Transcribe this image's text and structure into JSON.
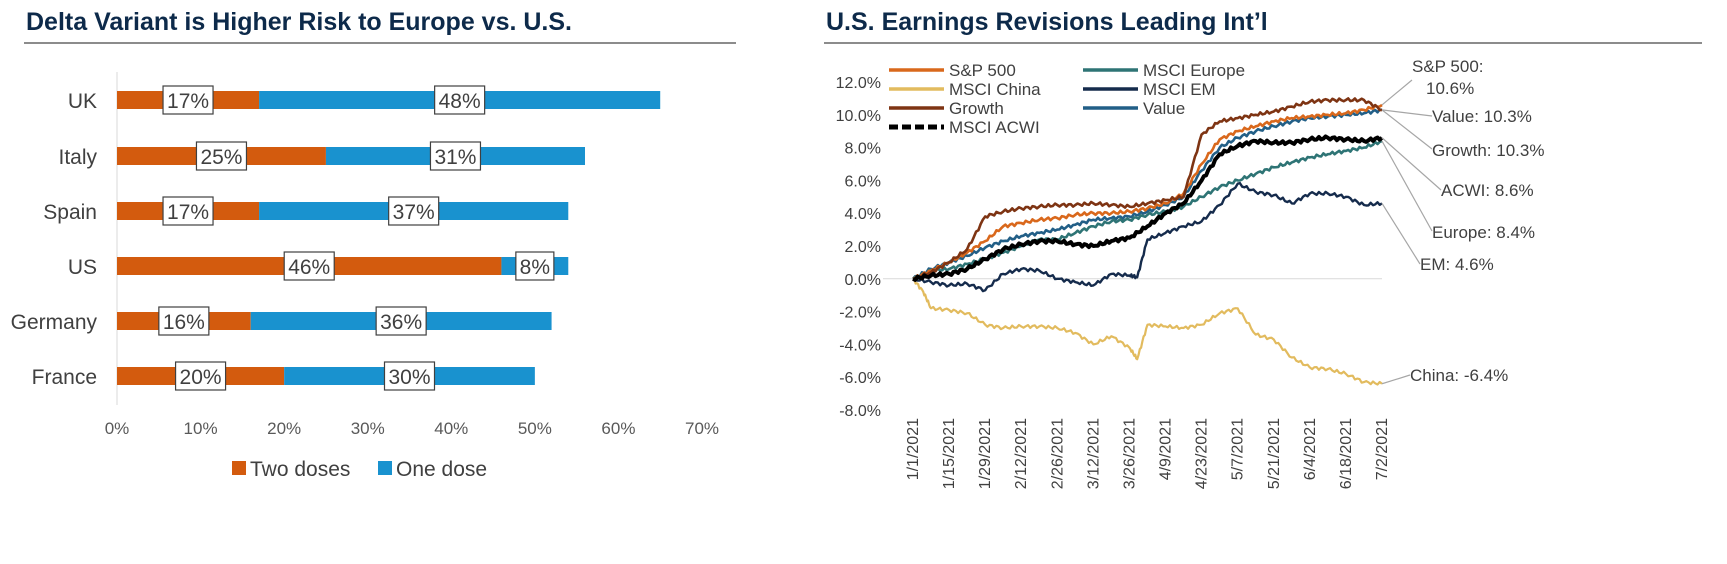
{
  "left": {
    "title": "Delta Variant is Higher Risk to Europe vs. U.S.",
    "chart_data": {
      "type": "bar",
      "orientation": "horizontal",
      "stacked": true,
      "title": "Delta Variant is Higher Risk to Europe vs. U.S.",
      "categories": [
        "UK",
        "Italy",
        "Spain",
        "US",
        "Germany",
        "France"
      ],
      "series": [
        {
          "name": "Two doses",
          "color": "#d35b0e",
          "values": [
            17,
            25,
            17,
            46,
            16,
            20
          ],
          "labels": [
            "17%",
            "25%",
            "17%",
            "46%",
            "16%",
            "20%"
          ]
        },
        {
          "name": "One dose",
          "color": "#1992cf",
          "values": [
            48,
            31,
            37,
            8,
            36,
            30
          ],
          "labels": [
            "48%",
            "31%",
            "37%",
            "8%",
            "36%",
            "30%"
          ]
        }
      ],
      "xlim": [
        0,
        70
      ],
      "x_ticks": [
        "0%",
        "10%",
        "20%",
        "30%",
        "40%",
        "50%",
        "60%",
        "70%"
      ],
      "legend": "bottom",
      "grid": false
    }
  },
  "right": {
    "title": "U.S. Earnings Revisions Leading Int’l",
    "chart_data": {
      "type": "line",
      "title": "U.S. Earnings Revisions Leading Int’l",
      "ylim": [
        -8,
        12
      ],
      "y_ticks": [
        "12.0%",
        "10.0%",
        "8.0%",
        "6.0%",
        "4.0%",
        "2.0%",
        "0.0%",
        "-2.0%",
        "-4.0%",
        "-6.0%",
        "-8.0%"
      ],
      "x_ticks": [
        "1/1/2021",
        "1/15/2021",
        "1/29/2021",
        "2/12/2021",
        "2/26/2021",
        "3/12/2021",
        "3/26/2021",
        "4/9/2021",
        "4/23/2021",
        "5/7/2021",
        "5/21/2021",
        "6/4/2021",
        "6/18/2021",
        "7/2/2021"
      ],
      "legend": "top-left",
      "grid": false,
      "series": [
        {
          "name": "S&P 500",
          "color": "#d9681c",
          "width": 2.6,
          "dash": "",
          "x": [
            "1/1/2021",
            "1/8/2021",
            "1/15/2021",
            "1/22/2021",
            "1/29/2021",
            "2/5/2021",
            "2/12/2021",
            "2/19/2021",
            "2/26/2021",
            "3/5/2021",
            "3/12/2021",
            "3/19/2021",
            "3/26/2021",
            "4/2/2021",
            "4/9/2021",
            "4/16/2021",
            "4/23/2021",
            "4/30/2021",
            "5/7/2021",
            "5/14/2021",
            "5/21/2021",
            "5/28/2021",
            "6/4/2021",
            "6/11/2021",
            "6/18/2021",
            "6/25/2021",
            "7/2/2021"
          ],
          "y": [
            0,
            0.5,
            1.0,
            1.6,
            2.3,
            3.2,
            3.4,
            3.6,
            3.7,
            3.9,
            4.0,
            4.0,
            4.1,
            4.3,
            4.6,
            5.2,
            7.0,
            8.5,
            9.0,
            9.3,
            9.6,
            9.8,
            9.9,
            10.0,
            10.1,
            10.3,
            10.6
          ]
        },
        {
          "name": "MSCI China",
          "color": "#e2bb5e",
          "width": 2.2,
          "dash": "",
          "x": [
            "1/1/2021",
            "1/5/2021",
            "1/8/2021",
            "1/15/2021",
            "1/22/2021",
            "1/29/2021",
            "2/5/2021",
            "2/12/2021",
            "2/19/2021",
            "2/26/2021",
            "3/5/2021",
            "3/12/2021",
            "3/19/2021",
            "3/26/2021",
            "3/29/2021",
            "4/2/2021",
            "4/9/2021",
            "4/16/2021",
            "4/23/2021",
            "4/30/2021",
            "5/7/2021",
            "5/14/2021",
            "5/21/2021",
            "5/28/2021",
            "6/4/2021",
            "6/11/2021",
            "6/18/2021",
            "6/25/2021",
            "7/2/2021"
          ],
          "y": [
            0,
            -0.8,
            -1.8,
            -1.9,
            -2.1,
            -2.8,
            -3.0,
            -2.9,
            -2.9,
            -3.0,
            -3.3,
            -4.0,
            -3.5,
            -4.2,
            -4.9,
            -2.8,
            -2.9,
            -3.0,
            -2.8,
            -2.1,
            -1.8,
            -3.4,
            -3.7,
            -4.8,
            -5.4,
            -5.5,
            -5.8,
            -6.3,
            -6.4
          ]
        },
        {
          "name": "Growth",
          "color": "#7e3413",
          "width": 2.6,
          "dash": "",
          "x": [
            "1/1/2021",
            "1/8/2021",
            "1/15/2021",
            "1/22/2021",
            "1/29/2021",
            "2/5/2021",
            "2/12/2021",
            "2/19/2021",
            "2/26/2021",
            "3/5/2021",
            "3/12/2021",
            "3/19/2021",
            "3/26/2021",
            "4/2/2021",
            "4/9/2021",
            "4/16/2021",
            "4/23/2021",
            "4/30/2021",
            "5/7/2021",
            "5/14/2021",
            "5/21/2021",
            "5/28/2021",
            "6/4/2021",
            "6/11/2021",
            "6/18/2021",
            "6/25/2021",
            "7/2/2021"
          ],
          "y": [
            0,
            0.4,
            1.0,
            1.8,
            3.8,
            4.1,
            4.3,
            4.4,
            4.5,
            4.5,
            4.6,
            4.5,
            4.4,
            4.6,
            4.8,
            5.0,
            8.8,
            9.6,
            9.8,
            10.0,
            10.2,
            10.5,
            10.8,
            10.9,
            10.9,
            10.9,
            10.3
          ]
        },
        {
          "name": "MSCI ACWI",
          "color": "#000000",
          "width": 4,
          "dash": "",
          "x": [
            "1/1/2021",
            "1/8/2021",
            "1/15/2021",
            "1/22/2021",
            "1/29/2021",
            "2/5/2021",
            "2/12/2021",
            "2/19/2021",
            "2/26/2021",
            "3/5/2021",
            "3/12/2021",
            "3/19/2021",
            "3/26/2021",
            "4/2/2021",
            "4/9/2021",
            "4/16/2021",
            "4/23/2021",
            "4/30/2021",
            "5/7/2021",
            "5/14/2021",
            "5/21/2021",
            "5/28/2021",
            "6/4/2021",
            "6/11/2021",
            "6/18/2021",
            "6/25/2021",
            "7/2/2021"
          ],
          "y": [
            0,
            0.2,
            0.3,
            0.6,
            1.2,
            1.8,
            2.1,
            2.3,
            2.3,
            2.1,
            2.0,
            2.3,
            2.5,
            3.2,
            4.0,
            4.6,
            6.0,
            7.6,
            8.1,
            8.4,
            8.3,
            8.3,
            8.5,
            8.6,
            8.5,
            8.4,
            8.6
          ]
        },
        {
          "name": "MSCI Europe",
          "color": "#2e7475",
          "width": 2.6,
          "dash": "",
          "x": [
            "1/1/2021",
            "1/8/2021",
            "1/15/2021",
            "1/22/2021",
            "1/29/2021",
            "2/5/2021",
            "2/12/2021",
            "2/19/2021",
            "2/26/2021",
            "3/5/2021",
            "3/12/2021",
            "3/19/2021",
            "3/26/2021",
            "4/2/2021",
            "4/9/2021",
            "4/16/2021",
            "4/23/2021",
            "4/30/2021",
            "5/7/2021",
            "5/14/2021",
            "5/21/2021",
            "5/28/2021",
            "6/4/2021",
            "6/11/2021",
            "6/18/2021",
            "6/25/2021",
            "7/2/2021"
          ],
          "y": [
            0,
            0.5,
            0.6,
            0.9,
            1.2,
            1.6,
            2.0,
            2.4,
            2.4,
            2.8,
            3.2,
            3.5,
            3.6,
            3.9,
            4.1,
            4.4,
            5.0,
            5.6,
            6.0,
            6.4,
            6.8,
            7.1,
            7.4,
            7.6,
            7.8,
            8.0,
            8.4
          ]
        },
        {
          "name": "MSCI EM",
          "color": "#152b4c",
          "width": 2.4,
          "dash": "",
          "x": [
            "1/1/2021",
            "1/8/2021",
            "1/15/2021",
            "1/22/2021",
            "1/29/2021",
            "2/5/2021",
            "2/12/2021",
            "2/19/2021",
            "2/26/2021",
            "3/5/2021",
            "3/12/2021",
            "3/19/2021",
            "3/26/2021",
            "3/29/2021",
            "4/2/2021",
            "4/9/2021",
            "4/16/2021",
            "4/23/2021",
            "4/30/2021",
            "5/7/2021",
            "5/14/2021",
            "5/21/2021",
            "5/28/2021",
            "6/4/2021",
            "6/11/2021",
            "6/18/2021",
            "6/25/2021",
            "7/2/2021"
          ],
          "y": [
            0,
            -0.2,
            -0.4,
            -0.3,
            -0.7,
            0.3,
            0.6,
            0.5,
            0.0,
            -0.2,
            -0.4,
            0.3,
            0.2,
            0.1,
            2.4,
            2.8,
            3.2,
            3.5,
            4.5,
            5.8,
            5.3,
            5.1,
            4.6,
            5.2,
            5.2,
            5.0,
            4.5,
            4.6
          ]
        },
        {
          "name": "Value",
          "color": "#225f87",
          "width": 2.6,
          "dash": "",
          "x": [
            "1/1/2021",
            "1/8/2021",
            "1/15/2021",
            "1/22/2021",
            "1/29/2021",
            "2/5/2021",
            "2/12/2021",
            "2/19/2021",
            "2/26/2021",
            "3/5/2021",
            "3/12/2021",
            "3/19/2021",
            "3/26/2021",
            "4/2/2021",
            "4/9/2021",
            "4/16/2021",
            "4/23/2021",
            "4/30/2021",
            "5/7/2021",
            "5/14/2021",
            "5/21/2021",
            "5/28/2021",
            "6/4/2021",
            "6/11/2021",
            "6/18/2021",
            "6/25/2021",
            "7/2/2021"
          ],
          "y": [
            0,
            0.6,
            1.0,
            1.4,
            1.9,
            2.3,
            2.6,
            2.8,
            3.0,
            3.3,
            3.6,
            3.7,
            3.8,
            4.1,
            4.5,
            5.0,
            6.6,
            8.0,
            8.6,
            9.0,
            9.3,
            9.6,
            9.8,
            9.9,
            10.0,
            10.1,
            10.3
          ]
        }
      ],
      "end_labels": [
        {
          "text": "S&P 500:",
          "value": 10.6,
          "line2": "10.6%"
        },
        {
          "text": "Value: 10.3%",
          "value": 10.3
        },
        {
          "text": "Growth: 10.3%",
          "value": 10.3
        },
        {
          "text": "ACWI: 8.6%",
          "value": 8.6
        },
        {
          "text": "Europe: 8.4%",
          "value": 8.4
        },
        {
          "text": "EM: 4.6%",
          "value": 4.6
        },
        {
          "text": "China: -6.4%",
          "value": -6.4
        }
      ]
    }
  }
}
